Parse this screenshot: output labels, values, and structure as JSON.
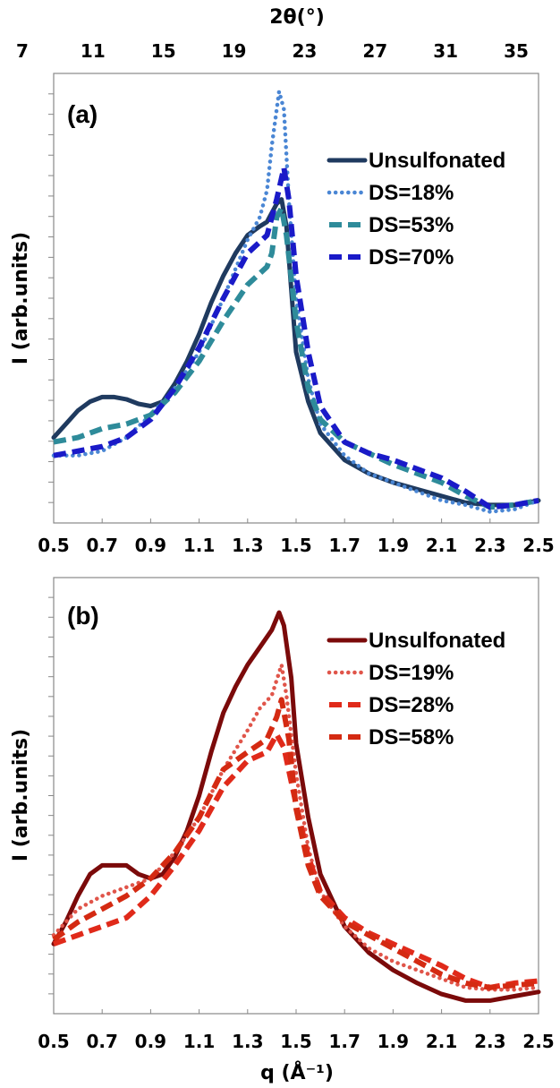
{
  "chart_data": [
    {
      "type": "line",
      "panel_label": "(a)",
      "top_axis_label": "2θ(°)",
      "top_ticks": [
        "7",
        "11",
        "15",
        "19",
        "23",
        "27",
        "31",
        "35"
      ],
      "ylabel": "I (arb.units)",
      "xlim": [
        0.5,
        2.5
      ],
      "ylim": [
        0,
        100
      ],
      "x_ticks": [
        "0.5",
        "0.7",
        "0.9",
        "1.1",
        "1.3",
        "1.5",
        "1.7",
        "1.9",
        "2.1",
        "2.3",
        "2.5"
      ],
      "grid": false,
      "legend_position": "top-right",
      "series": [
        {
          "name": "Unsulfonated",
          "color": "#1f3a5f",
          "style": "solid",
          "points": [
            [
              0.5,
              19
            ],
            [
              0.55,
              22
            ],
            [
              0.6,
              25
            ],
            [
              0.65,
              27
            ],
            [
              0.7,
              28
            ],
            [
              0.75,
              28
            ],
            [
              0.8,
              27.5
            ],
            [
              0.85,
              26.5
            ],
            [
              0.9,
              26
            ],
            [
              0.95,
              27
            ],
            [
              1.0,
              31
            ],
            [
              1.05,
              36
            ],
            [
              1.1,
              42
            ],
            [
              1.15,
              49
            ],
            [
              1.2,
              55
            ],
            [
              1.25,
              60
            ],
            [
              1.3,
              64
            ],
            [
              1.35,
              66
            ],
            [
              1.38,
              67
            ],
            [
              1.42,
              71
            ],
            [
              1.44,
              72
            ],
            [
              1.46,
              66
            ],
            [
              1.48,
              52
            ],
            [
              1.5,
              38
            ],
            [
              1.55,
              27
            ],
            [
              1.6,
              20
            ],
            [
              1.7,
              14
            ],
            [
              1.8,
              11
            ],
            [
              1.9,
              9
            ],
            [
              2.0,
              7.5
            ],
            [
              2.1,
              6
            ],
            [
              2.2,
              4.5
            ],
            [
              2.3,
              4
            ],
            [
              2.4,
              4
            ],
            [
              2.5,
              5
            ]
          ]
        },
        {
          "name": "DS=18%",
          "color": "#4a86d4",
          "style": "dotted",
          "points": [
            [
              0.5,
              15
            ],
            [
              0.6,
              15
            ],
            [
              0.7,
              16
            ],
            [
              0.8,
              19
            ],
            [
              0.9,
              24
            ],
            [
              1.0,
              30
            ],
            [
              1.1,
              38
            ],
            [
              1.2,
              50
            ],
            [
              1.3,
              63
            ],
            [
              1.35,
              68
            ],
            [
              1.38,
              74
            ],
            [
              1.4,
              84
            ],
            [
              1.43,
              96
            ],
            [
              1.45,
              92
            ],
            [
              1.47,
              72
            ],
            [
              1.5,
              50
            ],
            [
              1.55,
              32
            ],
            [
              1.6,
              22
            ],
            [
              1.7,
              15
            ],
            [
              1.8,
              11
            ],
            [
              1.9,
              9
            ],
            [
              2.0,
              7
            ],
            [
              2.1,
              5
            ],
            [
              2.2,
              4
            ],
            [
              2.3,
              2.5
            ],
            [
              2.4,
              3
            ],
            [
              2.5,
              5
            ]
          ]
        },
        {
          "name": "DS=53%",
          "color": "#2e8b9a",
          "style": "dashed",
          "points": [
            [
              0.5,
              18
            ],
            [
              0.6,
              19
            ],
            [
              0.7,
              21
            ],
            [
              0.8,
              22
            ],
            [
              0.9,
              24
            ],
            [
              1.0,
              29
            ],
            [
              1.1,
              36
            ],
            [
              1.2,
              45
            ],
            [
              1.3,
              53
            ],
            [
              1.38,
              57
            ],
            [
              1.4,
              60
            ],
            [
              1.42,
              68
            ],
            [
              1.44,
              70
            ],
            [
              1.46,
              64
            ],
            [
              1.5,
              45
            ],
            [
              1.55,
              30
            ],
            [
              1.6,
              23
            ],
            [
              1.7,
              18
            ],
            [
              1.8,
              15.5
            ],
            [
              1.9,
              13
            ],
            [
              2.0,
              11
            ],
            [
              2.1,
              9
            ],
            [
              2.2,
              6
            ],
            [
              2.3,
              3.5
            ],
            [
              2.4,
              4
            ],
            [
              2.5,
              5
            ]
          ]
        },
        {
          "name": "DS=70%",
          "color": "#1a1ac8",
          "style": "dashed",
          "points": [
            [
              0.5,
              15
            ],
            [
              0.6,
              16
            ],
            [
              0.7,
              17
            ],
            [
              0.8,
              19
            ],
            [
              0.9,
              23
            ],
            [
              1.0,
              30
            ],
            [
              1.1,
              39
            ],
            [
              1.2,
              50
            ],
            [
              1.3,
              60
            ],
            [
              1.38,
              64
            ],
            [
              1.42,
              72
            ],
            [
              1.45,
              79
            ],
            [
              1.47,
              72
            ],
            [
              1.5,
              55
            ],
            [
              1.55,
              38
            ],
            [
              1.6,
              26
            ],
            [
              1.7,
              18
            ],
            [
              1.8,
              15.5
            ],
            [
              1.9,
              14
            ],
            [
              2.0,
              12
            ],
            [
              2.1,
              10
            ],
            [
              2.2,
              7
            ],
            [
              2.3,
              3.5
            ],
            [
              2.4,
              4
            ],
            [
              2.5,
              5
            ]
          ]
        }
      ]
    },
    {
      "type": "line",
      "panel_label": "(b)",
      "ylabel": "I (arb.units)",
      "xlabel": "q (Å⁻¹)",
      "xlim": [
        0.5,
        2.5
      ],
      "ylim": [
        0,
        100
      ],
      "x_ticks": [
        "0.5",
        "0.7",
        "0.9",
        "1.1",
        "1.3",
        "1.5",
        "1.7",
        "1.9",
        "2.1",
        "2.3",
        "2.5"
      ],
      "grid": false,
      "legend_position": "top-right",
      "series": [
        {
          "name": "Unsulfonated",
          "color": "#7b0a0a",
          "style": "solid",
          "points": [
            [
              0.5,
              16
            ],
            [
              0.55,
              21
            ],
            [
              0.6,
              27
            ],
            [
              0.65,
              32
            ],
            [
              0.7,
              34
            ],
            [
              0.75,
              34
            ],
            [
              0.8,
              34
            ],
            [
              0.85,
              32
            ],
            [
              0.9,
              31
            ],
            [
              0.95,
              32
            ],
            [
              1.0,
              36
            ],
            [
              1.05,
              42
            ],
            [
              1.1,
              50
            ],
            [
              1.15,
              60
            ],
            [
              1.2,
              69
            ],
            [
              1.25,
              75
            ],
            [
              1.3,
              80
            ],
            [
              1.35,
              84
            ],
            [
              1.4,
              88
            ],
            [
              1.43,
              92
            ],
            [
              1.45,
              89
            ],
            [
              1.48,
              77
            ],
            [
              1.5,
              62
            ],
            [
              1.55,
              45
            ],
            [
              1.6,
              32
            ],
            [
              1.7,
              20
            ],
            [
              1.8,
              14
            ],
            [
              1.9,
              10
            ],
            [
              2.0,
              7
            ],
            [
              2.1,
              4.5
            ],
            [
              2.2,
              3
            ],
            [
              2.3,
              3
            ],
            [
              2.4,
              4
            ],
            [
              2.5,
              5
            ]
          ]
        },
        {
          "name": "DS=19%",
          "color": "#e0554a",
          "style": "dotted",
          "points": [
            [
              0.5,
              18
            ],
            [
              0.6,
              24
            ],
            [
              0.7,
              27
            ],
            [
              0.8,
              29
            ],
            [
              0.9,
              31
            ],
            [
              1.0,
              37
            ],
            [
              1.1,
              45
            ],
            [
              1.2,
              56
            ],
            [
              1.3,
              65
            ],
            [
              1.35,
              70
            ],
            [
              1.4,
              73
            ],
            [
              1.44,
              80
            ],
            [
              1.46,
              73
            ],
            [
              1.5,
              55
            ],
            [
              1.55,
              38
            ],
            [
              1.6,
              28
            ],
            [
              1.7,
              20
            ],
            [
              1.8,
              15
            ],
            [
              1.9,
              12
            ],
            [
              2.0,
              10
            ],
            [
              2.1,
              8
            ],
            [
              2.2,
              6
            ],
            [
              2.3,
              5.5
            ],
            [
              2.4,
              5.5
            ],
            [
              2.5,
              6
            ]
          ]
        },
        {
          "name": "DS=28%",
          "color": "#e02a1a",
          "style": "dashed",
          "points": [
            [
              0.5,
              16
            ],
            [
              0.6,
              18
            ],
            [
              0.7,
              20
            ],
            [
              0.8,
              22
            ],
            [
              0.9,
              27
            ],
            [
              1.0,
              34
            ],
            [
              1.1,
              42
            ],
            [
              1.2,
              52
            ],
            [
              1.3,
              58
            ],
            [
              1.38,
              60
            ],
            [
              1.42,
              64
            ],
            [
              1.45,
              61
            ],
            [
              1.5,
              48
            ],
            [
              1.55,
              36
            ],
            [
              1.6,
              28
            ],
            [
              1.7,
              22
            ],
            [
              1.8,
              18.5
            ],
            [
              1.9,
              16
            ],
            [
              2.0,
              13.5
            ],
            [
              2.1,
              11
            ],
            [
              2.2,
              8
            ],
            [
              2.3,
              6
            ],
            [
              2.4,
              7
            ],
            [
              2.5,
              7.5
            ]
          ]
        },
        {
          "name": "DS=58%",
          "color": "#d42a12",
          "style": "dashed",
          "points": [
            [
              0.5,
              17
            ],
            [
              0.6,
              21
            ],
            [
              0.7,
              24
            ],
            [
              0.8,
              27
            ],
            [
              0.9,
              31
            ],
            [
              1.0,
              37
            ],
            [
              1.1,
              45
            ],
            [
              1.2,
              56
            ],
            [
              1.3,
              60
            ],
            [
              1.38,
              63
            ],
            [
              1.42,
              68
            ],
            [
              1.44,
              72
            ],
            [
              1.47,
              63
            ],
            [
              1.5,
              47
            ],
            [
              1.55,
              34
            ],
            [
              1.6,
              27
            ],
            [
              1.7,
              21
            ],
            [
              1.8,
              18
            ],
            [
              1.9,
              15
            ],
            [
              2.0,
              12
            ],
            [
              2.1,
              9
            ],
            [
              2.2,
              7
            ],
            [
              2.3,
              6
            ],
            [
              2.4,
              6.5
            ],
            [
              2.5,
              7
            ]
          ]
        }
      ]
    }
  ]
}
